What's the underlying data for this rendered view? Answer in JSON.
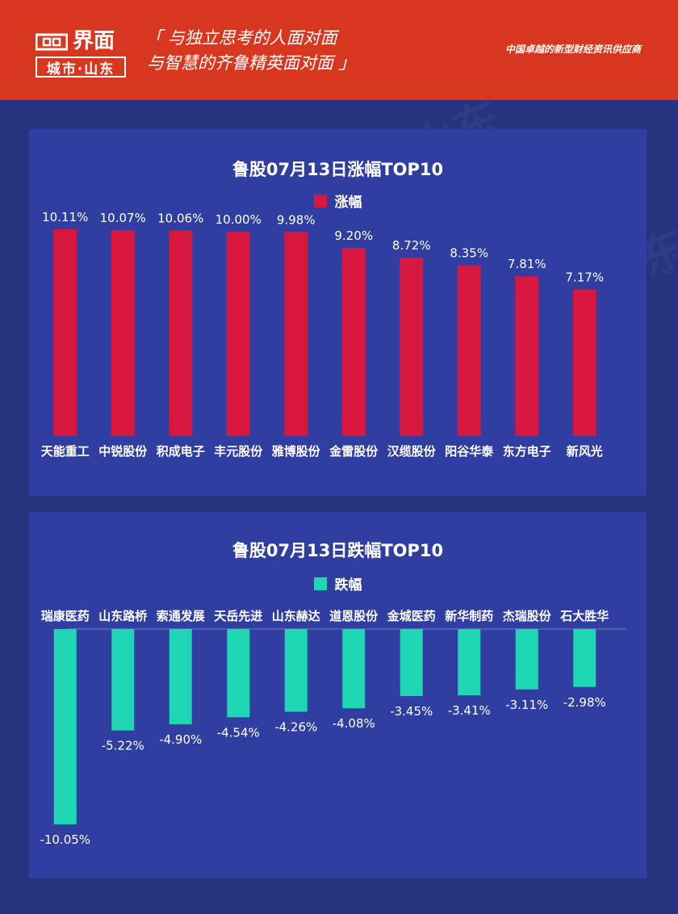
{
  "header": {
    "logo_text": "界面",
    "logo_sub": "城市·山东",
    "slogan_line1": "「 与独立思考的人面对面",
    "slogan_line2": "与智慧的齐鲁精英面对面 」",
    "tagline": "中国卓越的新型财经资讯供应商",
    "background_color": "#d8371f"
  },
  "watermark_text": "界面 城市·山东",
  "chart_data": [
    {
      "type": "bar",
      "title": "鲁股07月13日涨幅TOP10",
      "categories": [
        "天能重工",
        "中锐股份",
        "积成电子",
        "丰元股份",
        "雅博股份",
        "金雷股份",
        "汉缆股份",
        "阳谷华泰",
        "东方电子",
        "新风光"
      ],
      "series": [
        {
          "name": "涨幅",
          "values": [
            10.11,
            10.07,
            10.06,
            10.0,
            9.98,
            9.2,
            8.72,
            8.35,
            7.81,
            7.17
          ],
          "labels": [
            "10.11%",
            "10.07%",
            "10.06%",
            "10.00%",
            "9.98%",
            "9.20%",
            "8.72%",
            "8.35%",
            "7.81%",
            "7.17%"
          ],
          "color": "#d8173f"
        }
      ],
      "ylim": [
        0,
        10.11
      ],
      "grid": false,
      "legend_position": "top-center"
    },
    {
      "type": "bar",
      "title": "鲁股07月13日跌幅TOP10",
      "categories": [
        "瑞康医药",
        "山东路桥",
        "索通发展",
        "天岳先进",
        "山东赫达",
        "道恩股份",
        "金城医药",
        "新华制药",
        "杰瑞股份",
        "石大胜华"
      ],
      "series": [
        {
          "name": "跌幅",
          "values": [
            -10.05,
            -5.22,
            -4.9,
            -4.54,
            -4.26,
            -4.08,
            -3.45,
            -3.41,
            -3.11,
            -2.98
          ],
          "labels": [
            "-10.05%",
            "-5.22%",
            "-4.90%",
            "-4.54%",
            "-4.26%",
            "-4.08%",
            "-3.45%",
            "-3.41%",
            "-3.11%",
            "-2.98%"
          ],
          "color": "#1fd6b4"
        }
      ],
      "ylim": [
        -10.05,
        0
      ],
      "grid": false,
      "legend_position": "top-center"
    }
  ]
}
